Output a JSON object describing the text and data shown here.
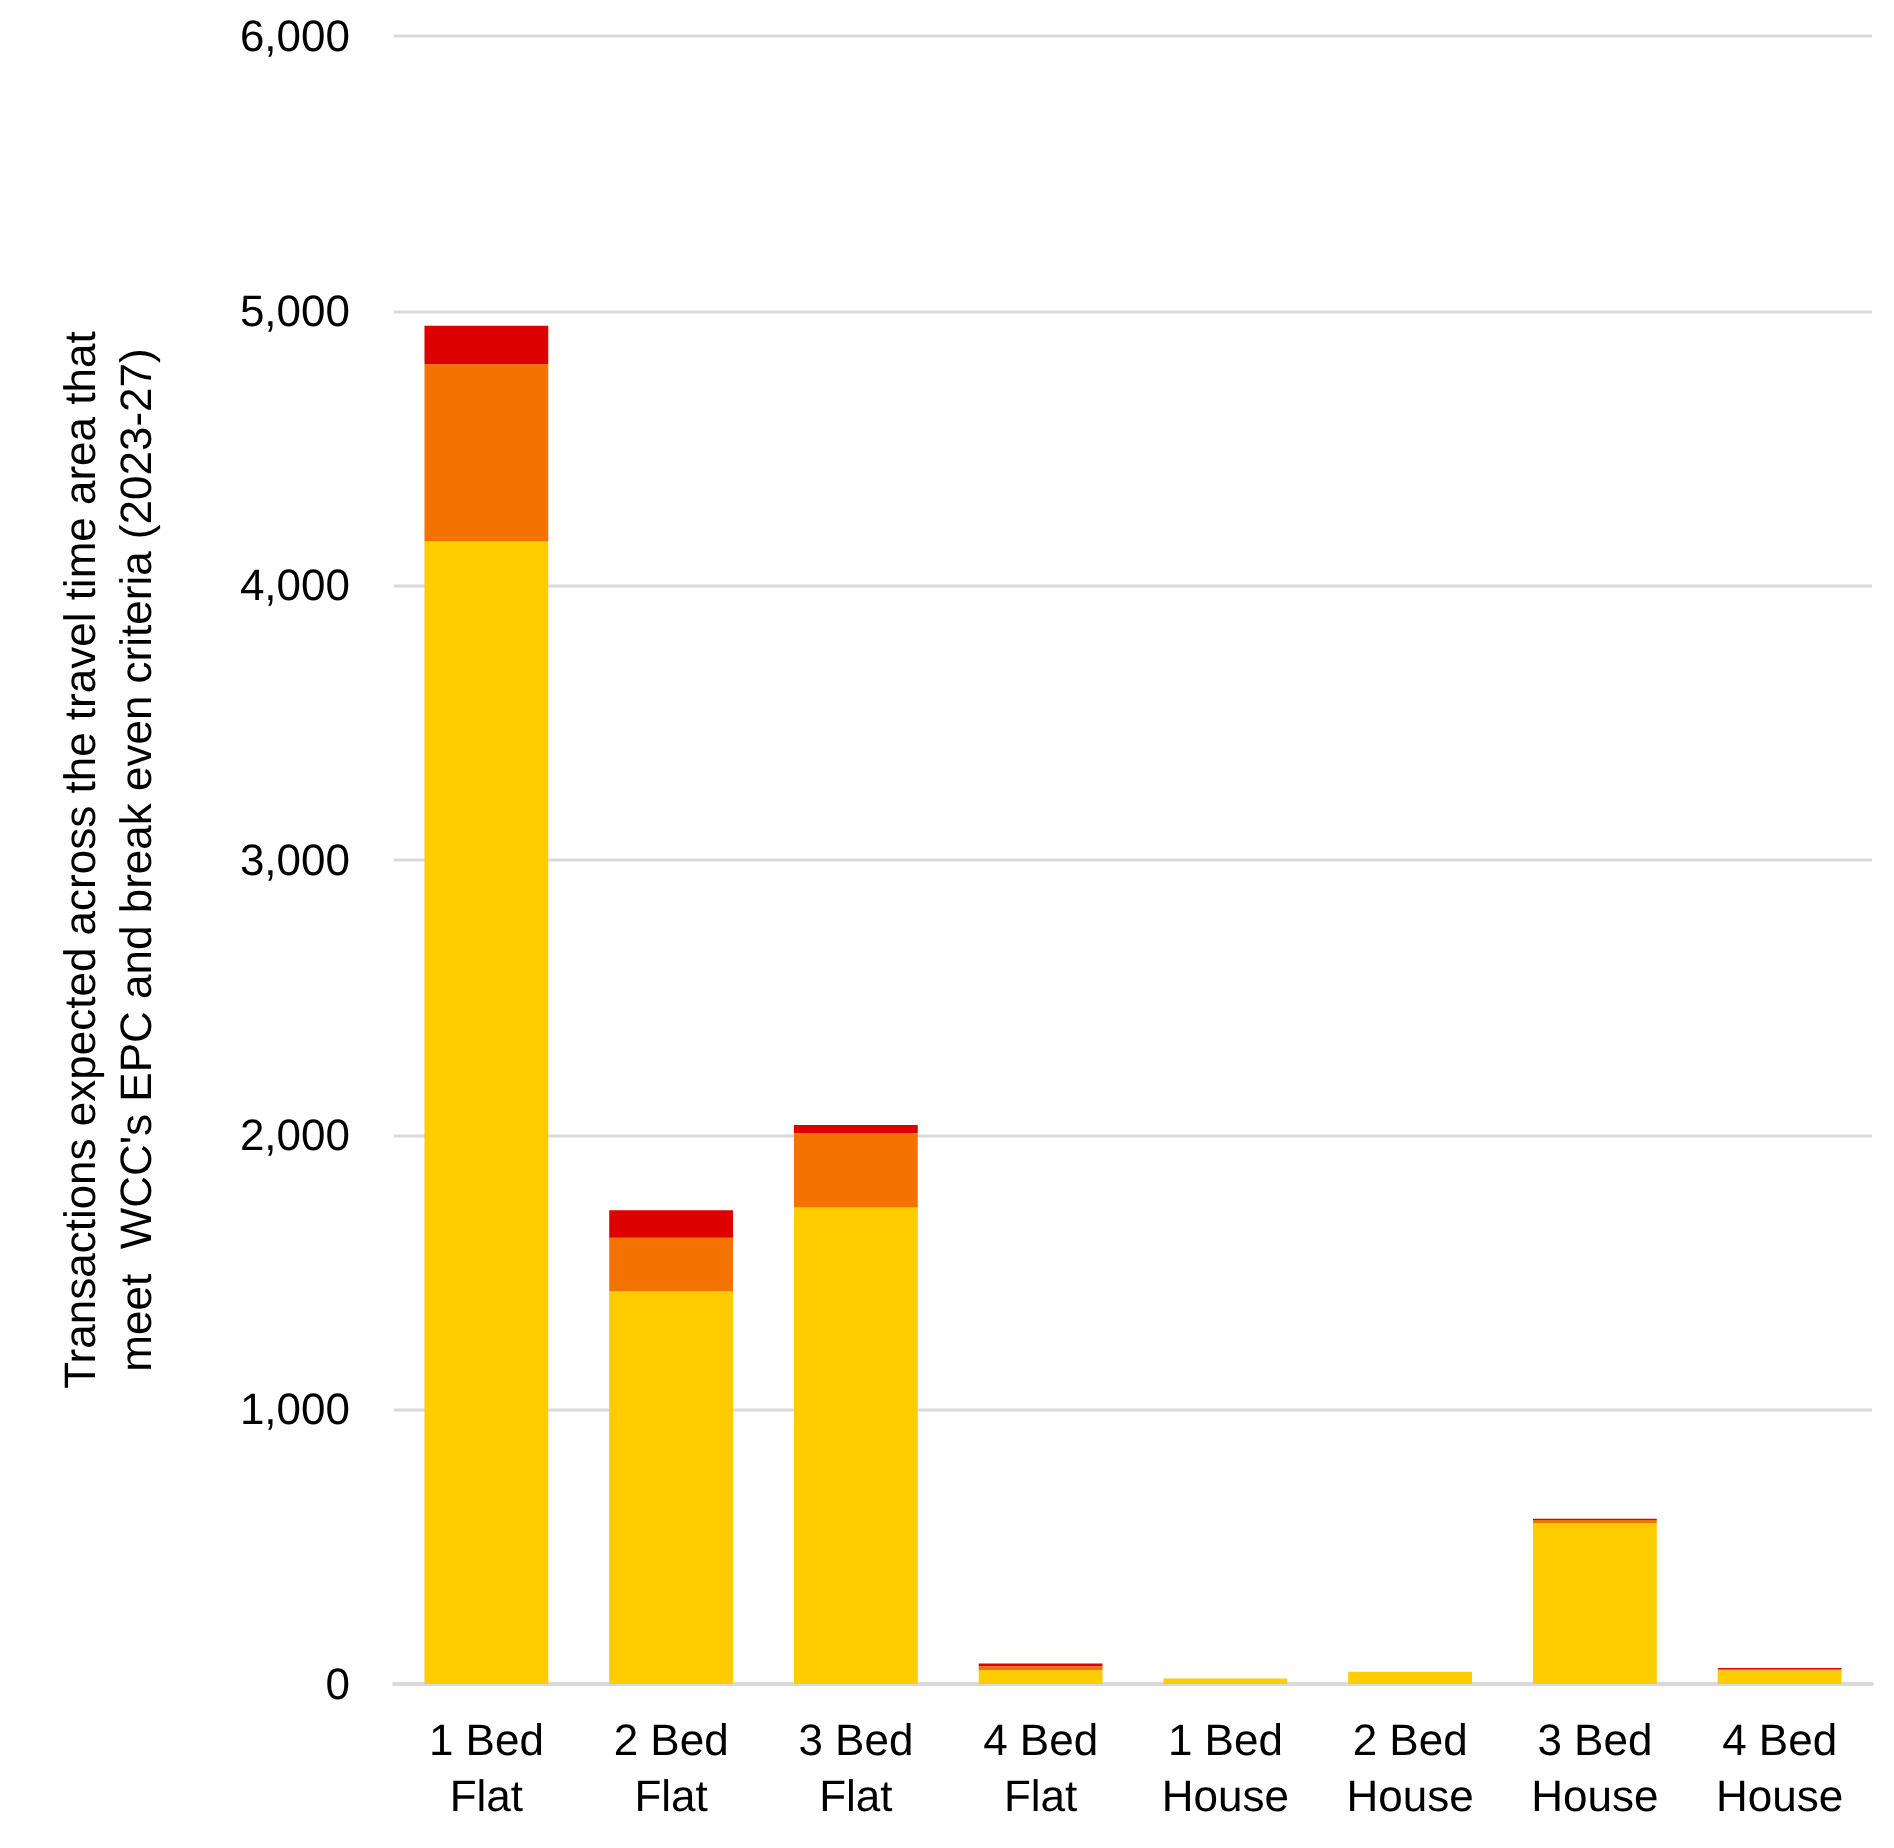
{
  "chart_data": {
    "type": "bar",
    "stacked": true,
    "ylabel": "Transactions expected across the travel time area that\nmeet  WCC's EPC and break even criteria (2023-27)",
    "categories": [
      "1 Bed\nFlat",
      "2 Bed\nFlat",
      "3 Bed\nFlat",
      "4 Bed\nFlat",
      "1 Bed\nHouse",
      "2 Bed\nHouse",
      "3 Bed\nHouse",
      "4 Bed\nHouse"
    ],
    "series": [
      {
        "color": "#ffcc00",
        "values": [
          4160,
          1430,
          1735,
          50,
          20,
          45,
          585,
          50
        ]
      },
      {
        "color": "#f47300",
        "values": [
          645,
          195,
          270,
          15,
          0,
          0,
          12,
          5
        ]
      },
      {
        "color": "#dd0000",
        "values": [
          140,
          100,
          30,
          10,
          0,
          0,
          5,
          3
        ]
      }
    ],
    "ylim": [
      0,
      6000
    ],
    "yticks": [
      0,
      {
        "value": 1000,
        "label": "1,000"
      },
      {
        "value": 2000,
        "label": "2,000"
      },
      {
        "value": 3000,
        "label": "3,000"
      },
      {
        "value": 4000,
        "label": "4,000"
      },
      {
        "value": 5000,
        "label": "5,000"
      },
      {
        "value": 6000,
        "label": "6,000"
      }
    ],
    "grid": "y"
  }
}
